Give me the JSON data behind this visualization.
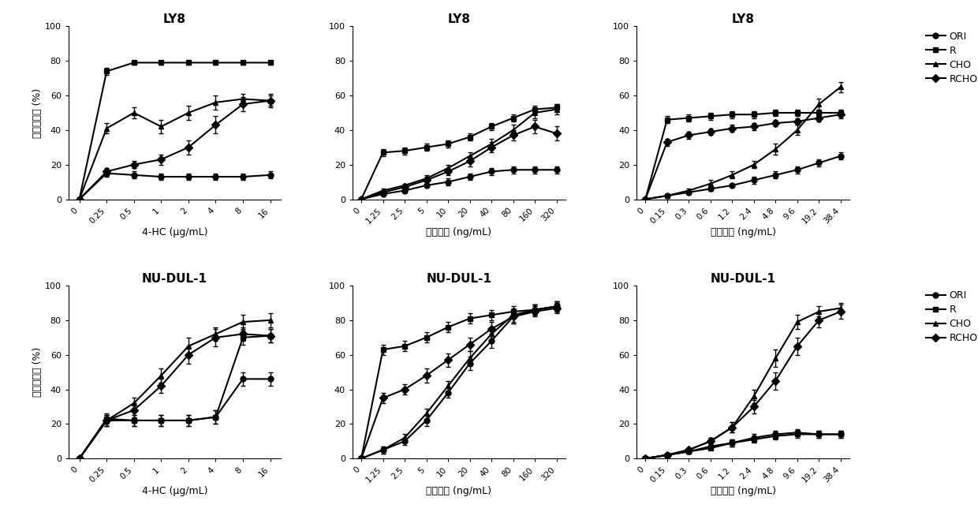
{
  "plots": [
    {
      "title": "LY8",
      "row": 0,
      "col": 0,
      "xlabel": "4-HC (μg/mL)",
      "xticks_labels": [
        "0",
        "0.25",
        "0.5",
        "1",
        "2",
        "4",
        "8",
        "16"
      ],
      "series": [
        {
          "label": "ORI",
          "marker": "o",
          "y": [
            0,
            15,
            14,
            13,
            13,
            13,
            13,
            14
          ],
          "yerr": [
            0,
            2,
            2,
            2,
            2,
            2,
            2,
            2
          ]
        },
        {
          "label": "R",
          "marker": "s",
          "y": [
            0,
            74,
            79,
            79,
            79,
            79,
            79,
            79
          ],
          "yerr": [
            0,
            2,
            1,
            1,
            1,
            1,
            1,
            1
          ]
        },
        {
          "label": "CHO",
          "marker": "^",
          "y": [
            0,
            41,
            50,
            42,
            50,
            56,
            58,
            57
          ],
          "yerr": [
            0,
            3,
            3,
            4,
            4,
            4,
            3,
            3
          ]
        },
        {
          "label": "RCHO",
          "marker": "D",
          "y": [
            0,
            16,
            20,
            23,
            30,
            43,
            55,
            57
          ],
          "yerr": [
            0,
            2,
            2,
            3,
            4,
            5,
            4,
            4
          ]
        }
      ]
    },
    {
      "title": "LY8",
      "row": 0,
      "col": 1,
      "xlabel": "多柔比星 (ng/mL)",
      "xticks_labels": [
        "0",
        "1.25",
        "2.5",
        "5",
        "10",
        "20",
        "40",
        "80",
        "160",
        "320"
      ],
      "series": [
        {
          "label": "ORI",
          "marker": "o",
          "y": [
            0,
            3,
            5,
            8,
            10,
            13,
            16,
            17,
            17,
            17
          ],
          "yerr": [
            0,
            1,
            1,
            1,
            2,
            2,
            2,
            2,
            2,
            2
          ]
        },
        {
          "label": "R",
          "marker": "s",
          "y": [
            0,
            27,
            28,
            30,
            32,
            36,
            42,
            47,
            52,
            53
          ],
          "yerr": [
            0,
            2,
            2,
            2,
            2,
            2,
            2,
            2,
            2,
            2
          ]
        },
        {
          "label": "CHO",
          "marker": "^",
          "y": [
            0,
            5,
            8,
            12,
            18,
            25,
            32,
            40,
            50,
            52
          ],
          "yerr": [
            0,
            1,
            1,
            2,
            2,
            2,
            3,
            3,
            3,
            3
          ]
        },
        {
          "label": "RCHO",
          "marker": "D",
          "y": [
            0,
            4,
            7,
            11,
            16,
            22,
            30,
            37,
            42,
            38
          ],
          "yerr": [
            0,
            1,
            1,
            2,
            2,
            3,
            3,
            3,
            4,
            4
          ]
        }
      ]
    },
    {
      "title": "LY8",
      "row": 0,
      "col": 2,
      "xlabel": "长春新碱 (ng/mL)",
      "xticks_labels": [
        "0",
        "0.15",
        "0.3",
        "0.6",
        "1.2",
        "2.4",
        "4.8",
        "9.6",
        "19.2",
        "38.4"
      ],
      "series": [
        {
          "label": "ORI",
          "marker": "o",
          "y": [
            0,
            2,
            4,
            6,
            8,
            11,
            14,
            17,
            21,
            25
          ],
          "yerr": [
            0,
            1,
            1,
            1,
            1,
            2,
            2,
            2,
            2,
            2
          ]
        },
        {
          "label": "R",
          "marker": "s",
          "y": [
            0,
            46,
            47,
            48,
            49,
            49,
            50,
            50,
            50,
            50
          ],
          "yerr": [
            0,
            2,
            2,
            2,
            2,
            2,
            2,
            2,
            2,
            2
          ]
        },
        {
          "label": "CHO",
          "marker": "^",
          "y": [
            0,
            2,
            5,
            9,
            14,
            20,
            29,
            40,
            55,
            65
          ],
          "yerr": [
            0,
            1,
            1,
            2,
            2,
            2,
            3,
            3,
            3,
            3
          ]
        },
        {
          "label": "RCHO",
          "marker": "D",
          "y": [
            0,
            33,
            37,
            39,
            41,
            42,
            44,
            45,
            47,
            49
          ],
          "yerr": [
            0,
            2,
            2,
            2,
            2,
            2,
            2,
            2,
            2,
            2
          ]
        }
      ]
    },
    {
      "title": "NU-DUL-1",
      "row": 1,
      "col": 0,
      "xlabel": "4-HC (μg/mL)",
      "xticks_labels": [
        "0",
        "0.25",
        "0.5",
        "1",
        "2",
        "4",
        "8",
        "16"
      ],
      "series": [
        {
          "label": "ORI",
          "marker": "o",
          "y": [
            0,
            22,
            22,
            22,
            22,
            24,
            46,
            46
          ],
          "yerr": [
            0,
            3,
            3,
            3,
            3,
            4,
            4,
            4
          ]
        },
        {
          "label": "R",
          "marker": "s",
          "y": [
            0,
            23,
            22,
            22,
            22,
            24,
            70,
            71
          ],
          "yerr": [
            0,
            3,
            3,
            3,
            3,
            4,
            4,
            4
          ]
        },
        {
          "label": "CHO",
          "marker": "^",
          "y": [
            0,
            22,
            32,
            48,
            65,
            72,
            79,
            80
          ],
          "yerr": [
            0,
            3,
            3,
            4,
            5,
            4,
            4,
            4
          ]
        },
        {
          "label": "RCHO",
          "marker": "D",
          "y": [
            0,
            22,
            28,
            42,
            60,
            70,
            72,
            71
          ],
          "yerr": [
            0,
            3,
            4,
            4,
            5,
            5,
            4,
            4
          ]
        }
      ]
    },
    {
      "title": "NU-DUL-1",
      "row": 1,
      "col": 1,
      "xlabel": "多柔比星 (ng/mL)",
      "xticks_labels": [
        "0",
        "1.25",
        "2.5",
        "5",
        "10",
        "20",
        "40",
        "80",
        "160",
        "320"
      ],
      "series": [
        {
          "label": "ORI",
          "marker": "o",
          "y": [
            0,
            5,
            10,
            22,
            38,
            55,
            68,
            82,
            86,
            88
          ],
          "yerr": [
            0,
            2,
            2,
            3,
            3,
            4,
            4,
            4,
            3,
            3
          ]
        },
        {
          "label": "R",
          "marker": "s",
          "y": [
            0,
            63,
            65,
            70,
            76,
            81,
            83,
            85,
            86,
            88
          ],
          "yerr": [
            0,
            3,
            3,
            3,
            3,
            3,
            3,
            3,
            3,
            3
          ]
        },
        {
          "label": "CHO",
          "marker": "^",
          "y": [
            0,
            5,
            12,
            26,
            42,
            58,
            72,
            83,
            86,
            88
          ],
          "yerr": [
            0,
            2,
            2,
            3,
            3,
            4,
            4,
            4,
            3,
            3
          ]
        },
        {
          "label": "RCHO",
          "marker": "D",
          "y": [
            0,
            35,
            40,
            48,
            57,
            66,
            75,
            82,
            85,
            87
          ],
          "yerr": [
            0,
            3,
            3,
            4,
            4,
            4,
            4,
            4,
            3,
            3
          ]
        }
      ]
    },
    {
      "title": "NU-DUL-1",
      "row": 1,
      "col": 2,
      "xlabel": "长春新碱 (ng/mL)",
      "xticks_labels": [
        "0",
        "0.15",
        "0.3",
        "0.6",
        "1.2",
        "2.4",
        "4.8",
        "9.6",
        "19.2",
        "38.4"
      ],
      "series": [
        {
          "label": "ORI",
          "marker": "o",
          "y": [
            0,
            2,
            4,
            7,
            9,
            12,
            14,
            15,
            14,
            14
          ],
          "yerr": [
            0,
            1,
            1,
            2,
            2,
            2,
            2,
            2,
            2,
            2
          ]
        },
        {
          "label": "R",
          "marker": "s",
          "y": [
            0,
            2,
            4,
            6,
            9,
            11,
            13,
            14,
            14,
            14
          ],
          "yerr": [
            0,
            1,
            1,
            1,
            2,
            2,
            2,
            2,
            2,
            2
          ]
        },
        {
          "label": "CHO",
          "marker": "^",
          "y": [
            0,
            2,
            5,
            10,
            18,
            36,
            58,
            79,
            85,
            87
          ],
          "yerr": [
            0,
            1,
            1,
            2,
            3,
            4,
            5,
            4,
            3,
            3
          ]
        },
        {
          "label": "RCHO",
          "marker": "D",
          "y": [
            0,
            2,
            5,
            10,
            18,
            30,
            45,
            65,
            80,
            85
          ],
          "yerr": [
            0,
            1,
            1,
            2,
            3,
            4,
            5,
            5,
            4,
            4
          ]
        }
      ]
    }
  ],
  "legend_entries": [
    "ORI",
    "R",
    "CHO",
    "RCHO"
  ],
  "legend_markers": [
    "o",
    "s",
    "^",
    "D"
  ],
  "ylim": [
    0,
    100
  ],
  "yticks": [
    0,
    20,
    40,
    60,
    80,
    100
  ],
  "ylabel": "增殖抑制率 (%)",
  "line_color": "#000000",
  "markersize": 5,
  "linewidth": 1.5,
  "capsize": 2,
  "elinewidth": 1,
  "capthick": 1
}
